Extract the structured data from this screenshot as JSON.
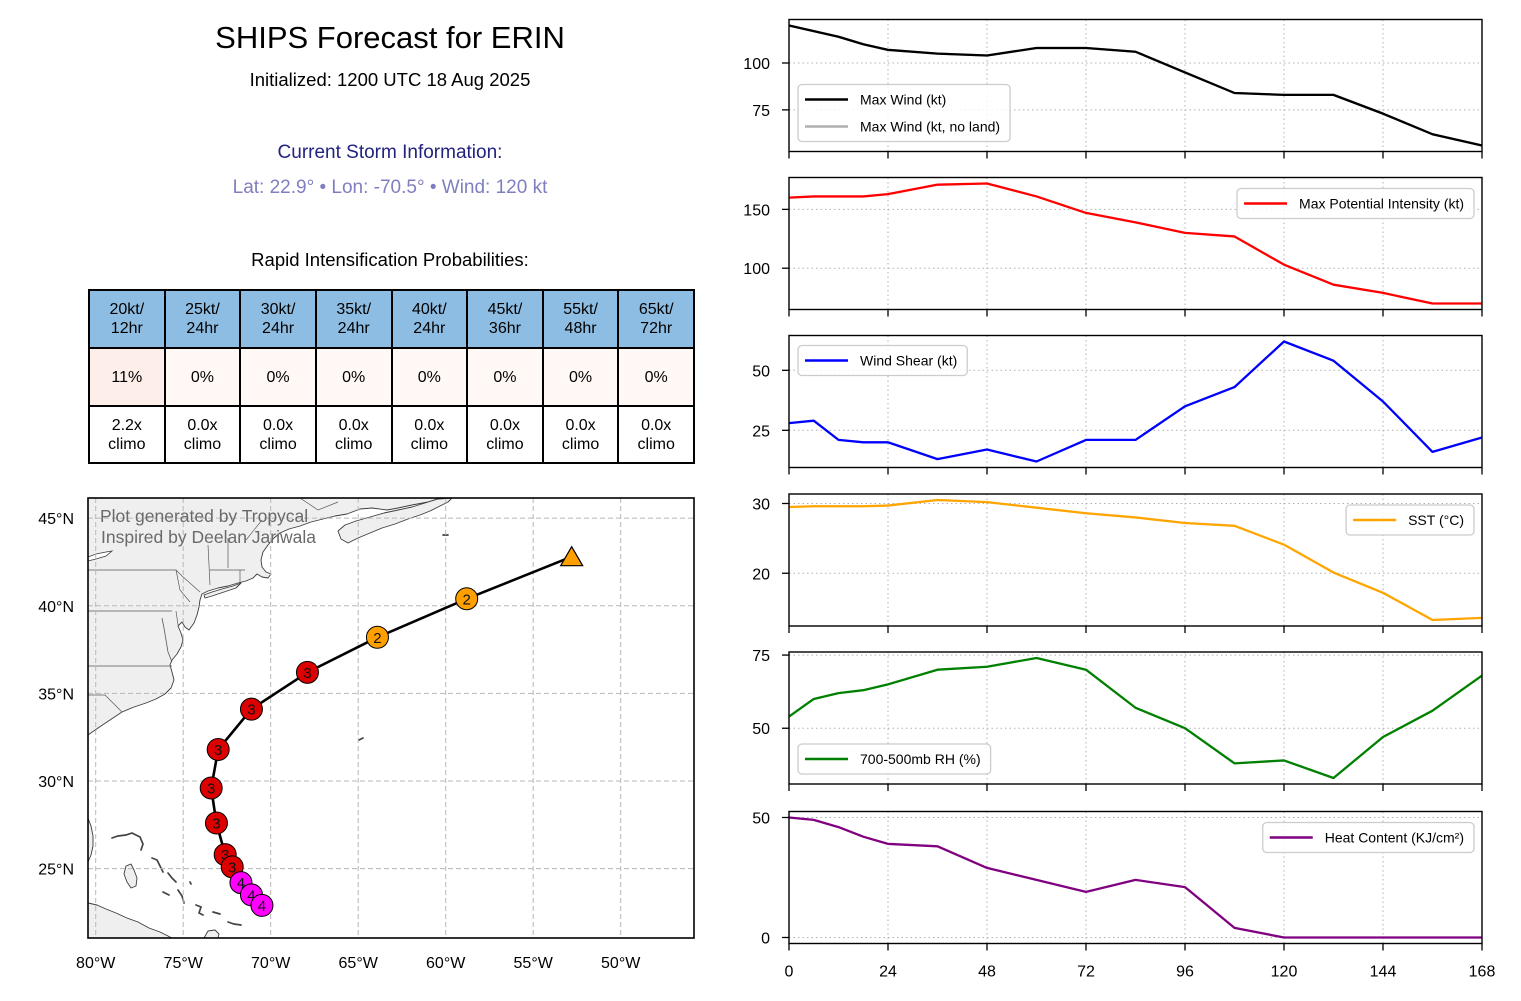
{
  "figure": {
    "title": "SHIPS Forecast for ERIN",
    "initialized": "Initialized: 1200 UTC 18 Aug 2025"
  },
  "storm_info": {
    "heading": "Current Storm Information:",
    "summary": "Lat: 22.9° • Lon: -70.5° • Wind: 120 kt",
    "lat_deg": 22.9,
    "lon_deg": -70.5,
    "wind_kt": 120,
    "heading_color": "#22227f",
    "summary_color": "#7f7fbf"
  },
  "ri_table": {
    "heading": "Rapid Intensification Probabilities:",
    "header_color": "#8ebde3",
    "columns": [
      {
        "threshold": "20kt/",
        "period": "12hr",
        "probability": "11%",
        "climo_multiple": "2.2x",
        "climo_label": "climo",
        "cell_color": "#fdeeea"
      },
      {
        "threshold": "25kt/",
        "period": "24hr",
        "probability": "0%",
        "climo_multiple": "0.0x",
        "climo_label": "climo",
        "cell_color": "#fff8f5"
      },
      {
        "threshold": "30kt/",
        "period": "24hr",
        "probability": "0%",
        "climo_multiple": "0.0x",
        "climo_label": "climo",
        "cell_color": "#fff8f5"
      },
      {
        "threshold": "35kt/",
        "period": "24hr",
        "probability": "0%",
        "climo_multiple": "0.0x",
        "climo_label": "climo",
        "cell_color": "#fff8f5"
      },
      {
        "threshold": "40kt/",
        "period": "24hr",
        "probability": "0%",
        "climo_multiple": "0.0x",
        "climo_label": "climo",
        "cell_color": "#fff8f5"
      },
      {
        "threshold": "45kt/",
        "period": "36hr",
        "probability": "0%",
        "climo_multiple": "0.0x",
        "climo_label": "climo",
        "cell_color": "#fff8f5"
      },
      {
        "threshold": "55kt/",
        "period": "48hr",
        "probability": "0%",
        "climo_multiple": "0.0x",
        "climo_label": "climo",
        "cell_color": "#fff8f5"
      },
      {
        "threshold": "65kt/",
        "period": "72hr",
        "probability": "0%",
        "climo_multiple": "0.0x",
        "climo_label": "climo",
        "cell_color": "#fff8f5"
      }
    ]
  },
  "map": {
    "watermark_lines": [
      "Plot generated by Tropycal",
      "Inspired by Deelan Jariwala"
    ],
    "extent": {
      "lon_min": -80.44,
      "lon_max": -45.81,
      "lat_min": 21.04,
      "lat_max": 46.15
    },
    "lon_ticks": [
      {
        "value": -80,
        "label": "80°W"
      },
      {
        "value": -75,
        "label": "75°W"
      },
      {
        "value": -70,
        "label": "70°W"
      },
      {
        "value": -65,
        "label": "65°W"
      },
      {
        "value": -60,
        "label": "60°W"
      },
      {
        "value": -55,
        "label": "55°W"
      },
      {
        "value": -50,
        "label": "50°W"
      }
    ],
    "lat_ticks": [
      {
        "value": 25,
        "label": "25°N"
      },
      {
        "value": 30,
        "label": "30°N"
      },
      {
        "value": 35,
        "label": "35°N"
      },
      {
        "value": 40,
        "label": "40°N"
      },
      {
        "value": 45,
        "label": "45°N"
      }
    ],
    "category_colors": {
      "4": "#ff00ff",
      "3": "#dd0000",
      "2": "#ffa000",
      "post-tropical": "#ffa000"
    },
    "track": [
      {
        "lat": 22.9,
        "lon": -70.5,
        "category": "4",
        "marker": "circle",
        "label": "4"
      },
      {
        "lat": 23.5,
        "lon": -71.1,
        "category": "4",
        "marker": "circle",
        "label": "4"
      },
      {
        "lat": 24.2,
        "lon": -71.7,
        "category": "4",
        "marker": "circle",
        "label": "4"
      },
      {
        "lat": 25.1,
        "lon": -72.2,
        "category": "3",
        "marker": "circle",
        "label": "3"
      },
      {
        "lat": 25.8,
        "lon": -72.6,
        "category": "3",
        "marker": "circle",
        "label": "3"
      },
      {
        "lat": 27.6,
        "lon": -73.1,
        "category": "3",
        "marker": "circle",
        "label": "3"
      },
      {
        "lat": 29.6,
        "lon": -73.4,
        "category": "3",
        "marker": "circle",
        "label": "3"
      },
      {
        "lat": 31.8,
        "lon": -73.0,
        "category": "3",
        "marker": "circle",
        "label": "3"
      },
      {
        "lat": 34.1,
        "lon": -71.1,
        "category": "3",
        "marker": "circle",
        "label": "3"
      },
      {
        "lat": 36.2,
        "lon": -67.9,
        "category": "3",
        "marker": "circle",
        "label": "3"
      },
      {
        "lat": 38.2,
        "lon": -63.9,
        "category": "2",
        "marker": "circle",
        "label": "2"
      },
      {
        "lat": 40.4,
        "lon": -58.8,
        "category": "2",
        "marker": "circle",
        "label": "2"
      },
      {
        "lat": 42.8,
        "lon": -52.8,
        "category": "post-tropical",
        "marker": "triangle",
        "label": ""
      }
    ]
  },
  "chart_data": [
    {
      "id": "max-wind",
      "type": "line",
      "title": "",
      "xlabel": "",
      "ylabel": "",
      "x": [
        0,
        6,
        12,
        18,
        24,
        36,
        48,
        60,
        72,
        84,
        96,
        108,
        120,
        132,
        144,
        156,
        168
      ],
      "xlim": [
        0,
        168
      ],
      "xticks": [
        0,
        24,
        48,
        72,
        96,
        120,
        144,
        168
      ],
      "show_xtick_labels": false,
      "ylim": [
        52.8,
        123.2
      ],
      "yticks": [
        75,
        100
      ],
      "grid": true,
      "legend": "lower-left",
      "series": [
        {
          "id": "max-wind",
          "name": "Max Wind (kt)",
          "color": "#000000",
          "values": [
            120,
            117,
            114,
            110,
            107,
            105,
            104,
            108,
            108,
            106,
            95,
            84,
            83,
            83,
            73,
            62,
            56
          ]
        },
        {
          "id": "max-wind-no-land",
          "name": "Max Wind (kt, no land)",
          "color": "#b0b0b0",
          "values": [
            120,
            117,
            114,
            110,
            107,
            105,
            104,
            108,
            108,
            106,
            95,
            84,
            83,
            83,
            73,
            62,
            56
          ]
        }
      ]
    },
    {
      "id": "mpi",
      "type": "line",
      "title": "",
      "xlabel": "",
      "ylabel": "",
      "x": [
        0,
        6,
        12,
        18,
        24,
        36,
        48,
        60,
        72,
        84,
        96,
        108,
        120,
        132,
        144,
        156,
        168
      ],
      "xlim": [
        0,
        168
      ],
      "xticks": [
        0,
        24,
        48,
        72,
        96,
        120,
        144,
        168
      ],
      "show_xtick_labels": false,
      "ylim": [
        64.9,
        177.1
      ],
      "yticks": [
        100,
        150
      ],
      "grid": true,
      "legend": "upper-right",
      "series": [
        {
          "id": "max-potential-intensity",
          "name": "Max Potential Intensity (kt)",
          "color": "#ff0000",
          "values": [
            160,
            161,
            161,
            161,
            163,
            171,
            172,
            161,
            147,
            139,
            130,
            127,
            103,
            86,
            79,
            70,
            70
          ]
        }
      ]
    },
    {
      "id": "shear",
      "type": "line",
      "title": "",
      "xlabel": "",
      "ylabel": "",
      "x": [
        0,
        6,
        12,
        18,
        24,
        36,
        48,
        60,
        72,
        84,
        96,
        108,
        120,
        132,
        144,
        156,
        168
      ],
      "xlim": [
        0,
        168
      ],
      "xticks": [
        0,
        24,
        48,
        72,
        96,
        120,
        144,
        168
      ],
      "show_xtick_labels": false,
      "ylim": [
        9.5,
        64.5
      ],
      "yticks": [
        25,
        50
      ],
      "grid": true,
      "legend": "upper-left",
      "series": [
        {
          "id": "wind-shear",
          "name": "Wind Shear (kt)",
          "color": "#0000ff",
          "values": [
            28,
            29,
            21,
            20,
            20,
            13,
            17,
            12,
            21,
            21,
            35,
            43,
            62,
            54,
            37,
            16,
            22
          ]
        }
      ]
    },
    {
      "id": "sst",
      "type": "line",
      "title": "",
      "xlabel": "",
      "ylabel": "",
      "x": [
        0,
        6,
        12,
        18,
        24,
        36,
        48,
        60,
        72,
        84,
        96,
        108,
        120,
        132,
        144,
        156,
        168
      ],
      "xlim": [
        0,
        168
      ],
      "xticks": [
        0,
        24,
        48,
        72,
        96,
        120,
        144,
        168
      ],
      "show_xtick_labels": false,
      "ylim": [
        12.44,
        31.36
      ],
      "yticks": [
        20,
        30
      ],
      "grid": true,
      "legend": "upper-right",
      "series": [
        {
          "id": "sst",
          "name": "SST (°C)",
          "color": "#ffa500",
          "values": [
            29.5,
            29.6,
            29.6,
            29.6,
            29.7,
            30.5,
            30.2,
            29.4,
            28.6,
            28.0,
            27.2,
            26.8,
            24.1,
            20.1,
            17.2,
            13.3,
            13.6
          ]
        }
      ]
    },
    {
      "id": "rh",
      "type": "line",
      "title": "",
      "xlabel": "",
      "ylabel": "",
      "x": [
        0,
        6,
        12,
        18,
        24,
        36,
        48,
        60,
        72,
        84,
        96,
        108,
        120,
        132,
        144,
        156,
        168
      ],
      "xlim": [
        0,
        168
      ],
      "xticks": [
        0,
        24,
        48,
        72,
        96,
        120,
        144,
        168
      ],
      "show_xtick_labels": false,
      "ylim": [
        30.95,
        76.05
      ],
      "yticks": [
        50,
        75
      ],
      "grid": true,
      "legend": "lower-left",
      "series": [
        {
          "id": "rh-700-500",
          "name": "700-500mb RH (%)",
          "color": "#008000",
          "values": [
            54,
            60,
            62,
            63,
            65,
            70,
            71,
            74,
            70,
            57,
            50,
            38,
            39,
            33,
            47,
            56,
            68
          ]
        }
      ]
    },
    {
      "id": "ohc",
      "type": "line",
      "title": "",
      "xlabel": "",
      "ylabel": "",
      "x": [
        0,
        6,
        12,
        18,
        24,
        36,
        48,
        60,
        72,
        84,
        96,
        108,
        120,
        132,
        144,
        156,
        168
      ],
      "xlim": [
        0,
        168
      ],
      "xticks": [
        0,
        24,
        48,
        72,
        96,
        120,
        144,
        168
      ],
      "show_xtick_labels": true,
      "ylim": [
        -2.5,
        52.5
      ],
      "yticks": [
        0,
        50
      ],
      "grid": true,
      "legend": "upper-right",
      "series": [
        {
          "id": "heat-content",
          "name": "Heat Content (KJ/cm²)",
          "color": "#800080",
          "values": [
            50,
            49,
            46,
            42,
            39,
            38,
            29,
            24,
            19,
            24,
            21,
            4,
            0,
            0,
            0,
            0,
            0
          ]
        }
      ]
    }
  ]
}
